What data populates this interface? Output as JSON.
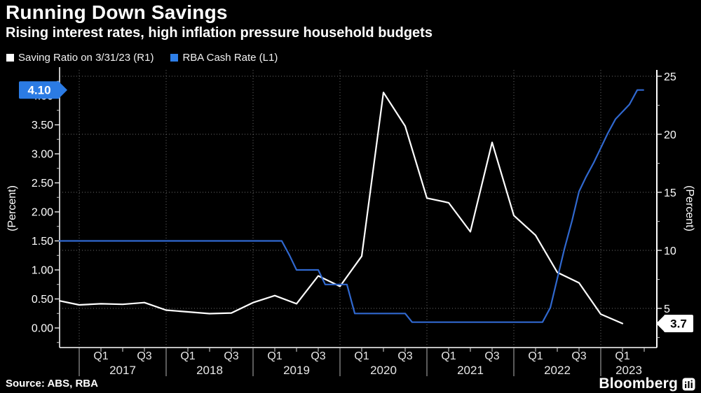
{
  "header": {
    "title": "Running Down Savings",
    "subtitle": "Rising interest rates, high inflation pressure household budgets"
  },
  "legend": {
    "items": [
      {
        "label": "Saving Ratio on 3/31/23 (R1)",
        "color": "#ffffff"
      },
      {
        "label": "RBA Cash Rate (L1)",
        "color": "#2e7fe8"
      }
    ]
  },
  "chart_data": {
    "type": "line",
    "title": "Running Down Savings",
    "subtitle": "Rising interest rates, high inflation pressure household budgets",
    "x_axis": {
      "years": [
        "2017",
        "2018",
        "2019",
        "2020",
        "2021",
        "2022",
        "2023"
      ],
      "quarter_labels": [
        "Q1",
        "Q3"
      ],
      "range": [
        2016.774,
        2023.645
      ]
    },
    "left_axis": {
      "label": "(Percent)",
      "tick_values": [
        0,
        0.5,
        1,
        1.5,
        2,
        2.5,
        3,
        3.5,
        4
      ],
      "tick_labels": [
        "0.00",
        "0.50",
        "1.00",
        "1.50",
        "2.00",
        "2.50",
        "3.00",
        "3.50",
        "4.00"
      ],
      "minor_step": 0.25,
      "range": [
        -0.34,
        4.45
      ]
    },
    "right_axis": {
      "label": "(Percent)",
      "tick_values": [
        5,
        10,
        15,
        20,
        25
      ],
      "tick_labels": [
        "5",
        "10",
        "15",
        "20",
        "25"
      ],
      "minor_step": 2.5,
      "gridlines": true,
      "range": [
        2.1,
        25.5
      ]
    },
    "series": [
      {
        "name": "Saving Ratio on 3/31/23 (R1)",
        "axis": "right",
        "color": "#ffffff",
        "width": 2.2,
        "points": [
          [
            2016.774,
            5.65
          ],
          [
            2017.0,
            5.3
          ],
          [
            2017.25,
            5.4
          ],
          [
            2017.5,
            5.35
          ],
          [
            2017.75,
            5.5
          ],
          [
            2018.0,
            4.85
          ],
          [
            2018.25,
            4.7
          ],
          [
            2018.5,
            4.55
          ],
          [
            2018.75,
            4.6
          ],
          [
            2019.0,
            5.5
          ],
          [
            2019.25,
            6.1
          ],
          [
            2019.5,
            5.4
          ],
          [
            2019.75,
            7.8
          ],
          [
            2020.0,
            6.9
          ],
          [
            2020.25,
            9.5
          ],
          [
            2020.5,
            23.6
          ],
          [
            2020.75,
            20.7
          ],
          [
            2021.0,
            14.5
          ],
          [
            2021.25,
            14.1
          ],
          [
            2021.5,
            11.6
          ],
          [
            2021.75,
            19.3
          ],
          [
            2022.0,
            13.0
          ],
          [
            2022.25,
            11.3
          ],
          [
            2022.5,
            8.1
          ],
          [
            2022.75,
            7.2
          ],
          [
            2023.0,
            4.5
          ],
          [
            2023.25,
            3.7
          ]
        ]
      },
      {
        "name": "RBA Cash Rate (L1)",
        "axis": "left",
        "color": "#3068cf",
        "width": 2.2,
        "points": [
          [
            2016.774,
            1.5
          ],
          [
            2019.33,
            1.5
          ],
          [
            2019.42,
            1.25
          ],
          [
            2019.5,
            1.0
          ],
          [
            2019.75,
            1.0
          ],
          [
            2019.83,
            0.75
          ],
          [
            2020.08,
            0.75
          ],
          [
            2020.17,
            0.25
          ],
          [
            2020.75,
            0.25
          ],
          [
            2020.83,
            0.1
          ],
          [
            2022.33,
            0.1
          ],
          [
            2022.42,
            0.35
          ],
          [
            2022.5,
            0.85
          ],
          [
            2022.58,
            1.35
          ],
          [
            2022.67,
            1.85
          ],
          [
            2022.75,
            2.35
          ],
          [
            2022.83,
            2.6
          ],
          [
            2022.92,
            2.85
          ],
          [
            2023.0,
            3.1
          ],
          [
            2023.08,
            3.35
          ],
          [
            2023.17,
            3.6
          ],
          [
            2023.33,
            3.85
          ],
          [
            2023.42,
            4.1
          ],
          [
            2023.49,
            4.1
          ]
        ]
      }
    ],
    "callouts": [
      {
        "text": "4.10",
        "axis": "left",
        "value": 4.1,
        "side": "left",
        "bg": "#2b7be4",
        "fg": "#ffffff"
      },
      {
        "text": "3.7",
        "axis": "right",
        "value": 3.7,
        "side": "right",
        "bg": "#ffffff",
        "fg": "#000000"
      }
    ]
  },
  "source": {
    "text": "Source: ABS, RBA"
  },
  "branding": {
    "wordmark": "Bloomberg"
  }
}
